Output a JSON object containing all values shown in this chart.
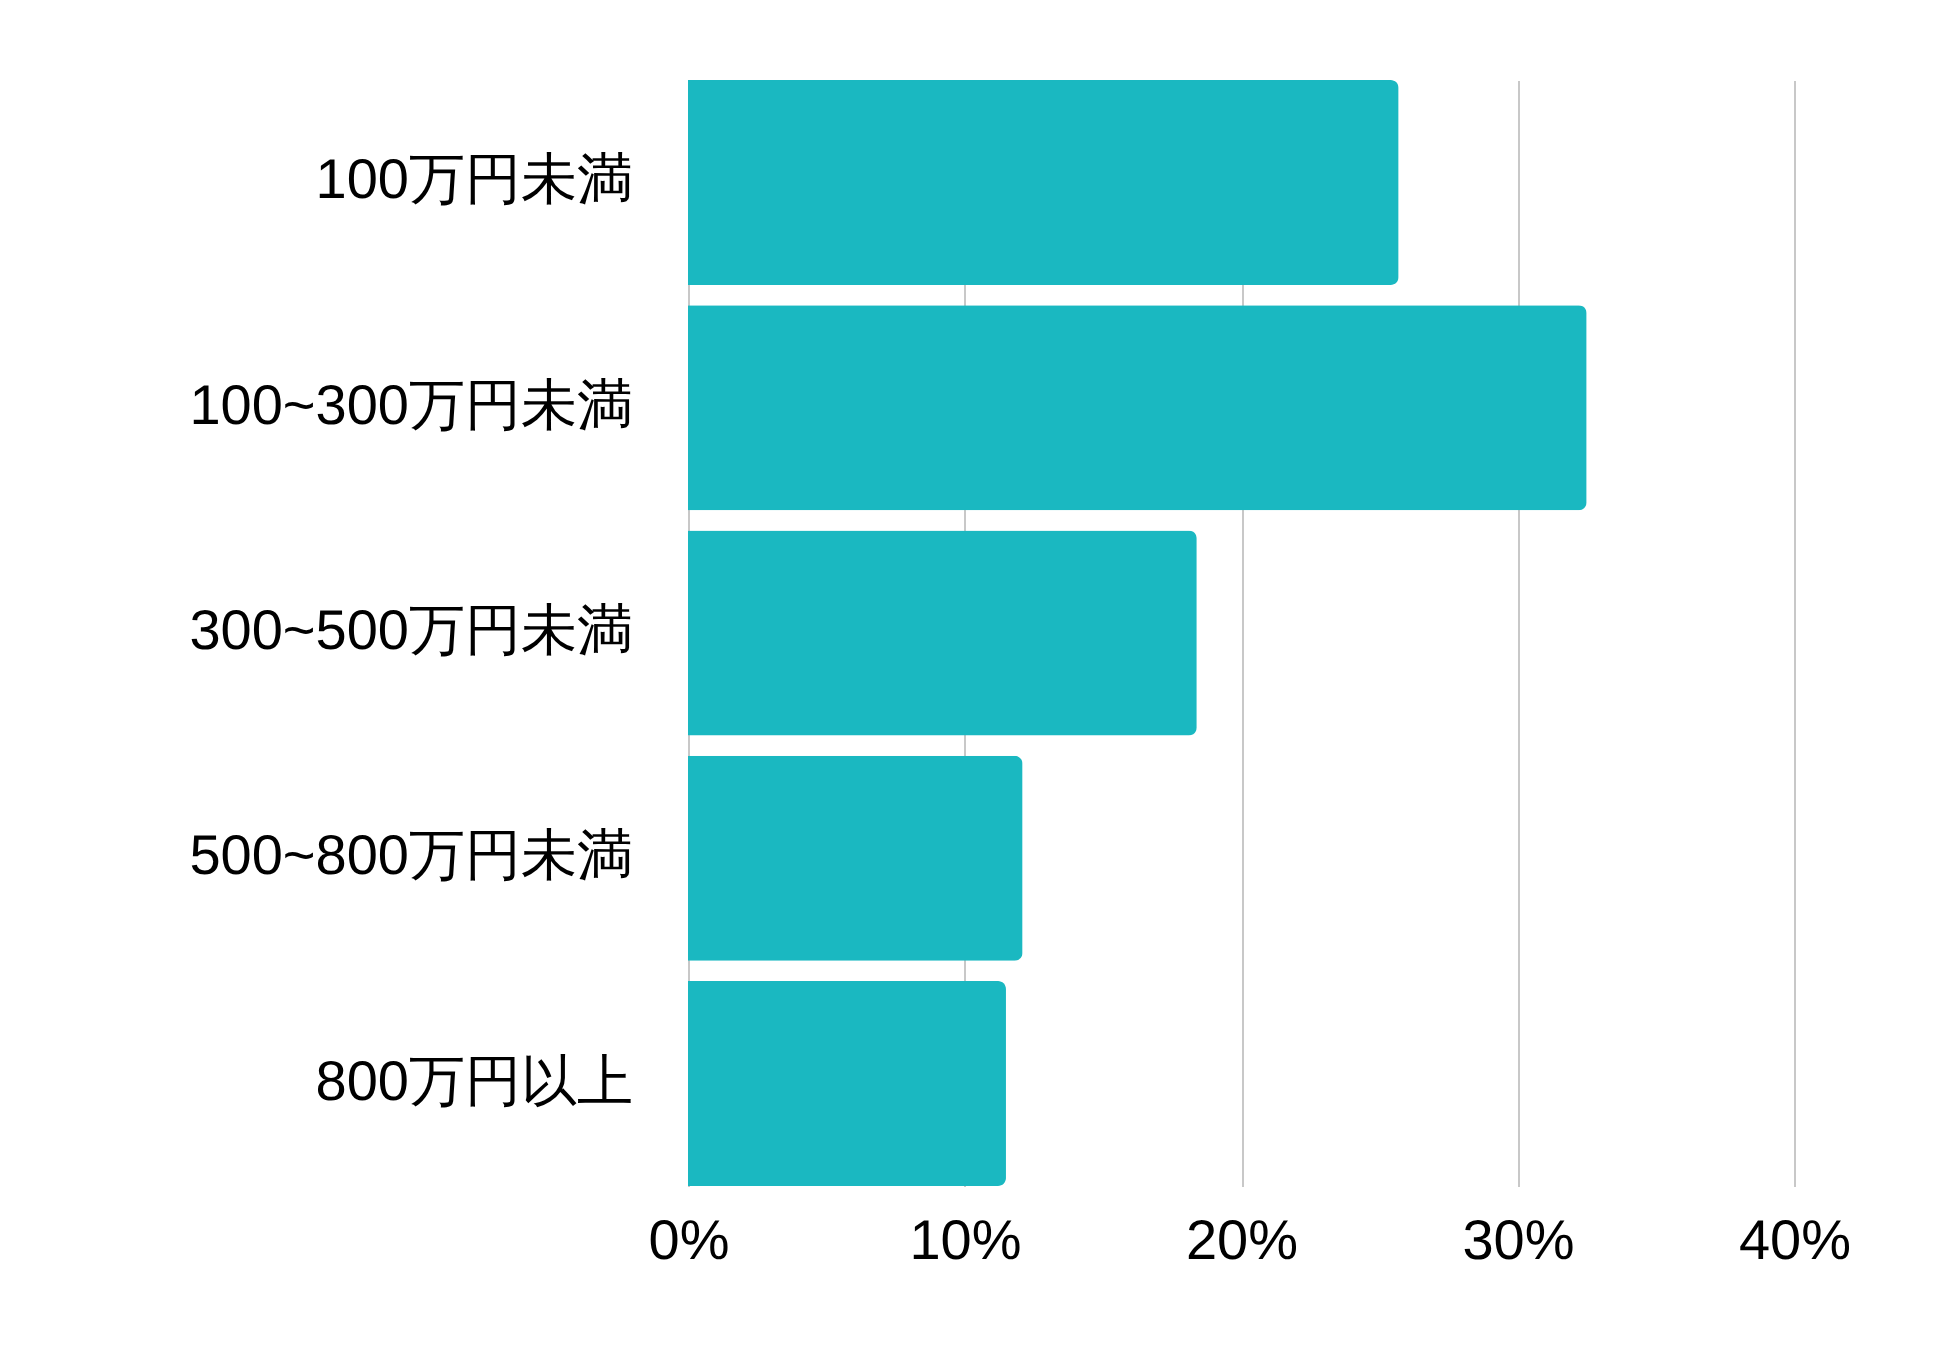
{
  "chart_data": {
    "type": "bar",
    "orientation": "horizontal",
    "categories": [
      "100万円未満",
      "100~300万円未満",
      "300~500万円未満",
      "500~800万円未満",
      "800万円以上"
    ],
    "values": [
      25.7,
      32.5,
      18.4,
      12.1,
      11.5
    ],
    "color": "#1ab8c1",
    "xlim": [
      0,
      40
    ],
    "xticks": [
      {
        "value": 0,
        "label": "0%"
      },
      {
        "value": 10,
        "label": "10%"
      },
      {
        "value": 20,
        "label": "20%"
      },
      {
        "value": 30,
        "label": "30%"
      },
      {
        "value": 40,
        "label": "40%"
      }
    ],
    "grid": "x"
  }
}
